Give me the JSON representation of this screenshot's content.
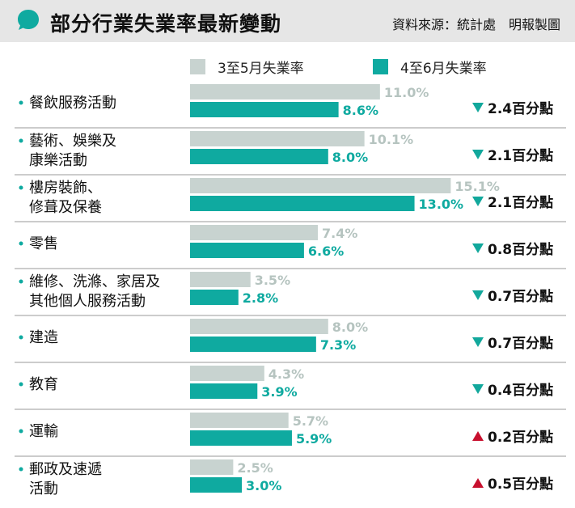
{
  "header": {
    "title": "部分行業失業率最新變動",
    "source": "資料來源：統計處　明報製圖",
    "icon": "speech-bubble-icon"
  },
  "colors": {
    "prev": "#c8d3d0",
    "curr": "#0faaa0",
    "down": "#12a89c",
    "up": "#c8102e",
    "divider": "#9a9a9a",
    "bullet": "#0faaa0"
  },
  "legend": [
    {
      "label": "3至5月失業率",
      "color": "#c8d3d0"
    },
    {
      "label": "4至6月失業率",
      "color": "#0faaa0"
    }
  ],
  "chart_data": {
    "type": "bar",
    "orientation": "horizontal",
    "title": "部分行業失業率最新變動",
    "unit": "%",
    "categories": [
      [
        "餐飲服務活動"
      ],
      [
        "藝術、娛樂及",
        "康樂活動"
      ],
      [
        "樓房裝飾、",
        "修葺及保養"
      ],
      [
        "零售"
      ],
      [
        "維修、洗滌、家居及",
        "其他個人服務活動"
      ],
      [
        "建造"
      ],
      [
        "教育"
      ],
      [
        "運輸"
      ],
      [
        "郵政及速遞",
        "活動"
      ]
    ],
    "series": [
      {
        "name": "3至5月失業率",
        "values": [
          11.0,
          10.1,
          15.1,
          7.4,
          3.5,
          8.0,
          4.3,
          5.7,
          2.5
        ]
      },
      {
        "name": "4至6月失業率",
        "values": [
          8.6,
          8.0,
          13.0,
          6.6,
          2.8,
          7.3,
          3.9,
          5.9,
          3.0
        ]
      }
    ],
    "value_labels": {
      "prev": [
        "11.0%",
        "10.1%",
        "15.1%",
        "7.4%",
        "3.5%",
        "8.0%",
        "4.3%",
        "5.7%",
        "2.5%"
      ],
      "curr": [
        "8.6%",
        "8.0%",
        "13.0%",
        "6.6%",
        "2.8%",
        "7.3%",
        "3.9%",
        "5.9%",
        "3.0%"
      ]
    },
    "changes": [
      {
        "direction": "down",
        "text": "2.4百分點"
      },
      {
        "direction": "down",
        "text": "2.1百分點"
      },
      {
        "direction": "down",
        "text": "2.1百分點"
      },
      {
        "direction": "down",
        "text": "0.8百分點"
      },
      {
        "direction": "down",
        "text": "0.7百分點"
      },
      {
        "direction": "down",
        "text": "0.7百分點"
      },
      {
        "direction": "down",
        "text": "0.4百分點"
      },
      {
        "direction": "up",
        "text": "0.2百分點"
      },
      {
        "direction": "up",
        "text": "0.5百分點"
      }
    ]
  }
}
